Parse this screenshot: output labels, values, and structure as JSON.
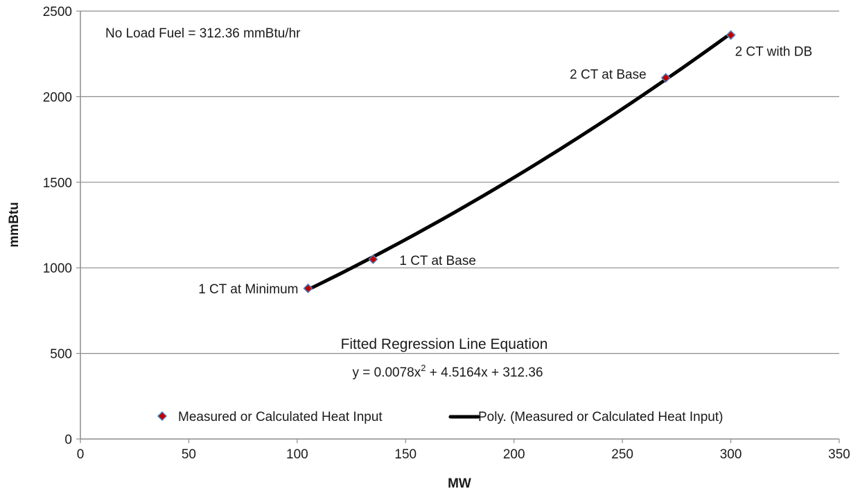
{
  "chart_data": {
    "type": "scatter",
    "title": "",
    "xlabel": "MW",
    "ylabel": "mmBtu",
    "xlim": [
      0,
      350
    ],
    "ylim": [
      0,
      2500
    ],
    "x_ticks": [
      "0",
      "50",
      "100",
      "150",
      "200",
      "250",
      "300",
      "350"
    ],
    "y_ticks": [
      "0",
      "500",
      "1000",
      "1500",
      "2000",
      "2500"
    ],
    "grid": "horizontal",
    "legend_placement": "bottom-center",
    "series": [
      {
        "name": "Measured or Calculated Heat Input",
        "kind": "points",
        "marker": "diamond",
        "color": "#c00000",
        "edge_color": "#4f81bd",
        "points": [
          {
            "x": 105,
            "y": 880,
            "label": "1 CT at Minimum"
          },
          {
            "x": 135,
            "y": 1050,
            "label": "1 CT at Base"
          },
          {
            "x": 270,
            "y": 2110,
            "label": "2 CT at Base"
          },
          {
            "x": 300,
            "y": 2360,
            "label": "2 CT with DB"
          }
        ]
      },
      {
        "name": "Poly. (Measured or Calculated Heat Input)",
        "kind": "trendline",
        "color": "#000000",
        "coefficients": {
          "a": 0.0078,
          "b": 4.5164,
          "c": 312.36
        },
        "x_range": [
          105,
          300
        ]
      }
    ],
    "annotations": {
      "no_load": "No Load Fuel = 312.36 mmBtu/hr",
      "equation_title": "Fitted Regression Line Equation",
      "equation_prefix": "y = 0.0078x",
      "equation_sup": "2",
      "equation_suffix": " + 4.5164x + 312.36"
    }
  }
}
